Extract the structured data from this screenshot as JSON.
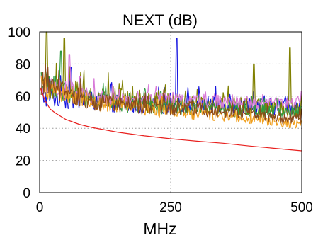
{
  "chart_data": {
    "type": "line",
    "title": "NEXT (dB)",
    "xlabel": "MHz",
    "ylabel": "",
    "xlim": [
      0,
      500
    ],
    "ylim": [
      0,
      100
    ],
    "xticks": [
      0,
      250,
      500
    ],
    "yticks": [
      0,
      20,
      40,
      60,
      80,
      100
    ],
    "grid": true,
    "legend": "none",
    "limit_line": {
      "color": "#e8201e",
      "x": [
        1,
        5,
        10,
        20,
        30,
        50,
        75,
        100,
        150,
        200,
        250,
        300,
        350,
        400,
        450,
        500
      ],
      "values": [
        65.3,
        62,
        57.5,
        52,
        49.5,
        45.5,
        42.5,
        40.5,
        37.5,
        35.3,
        33.5,
        32,
        30.7,
        29,
        27.5,
        26
      ]
    },
    "measured_series": [
      {
        "color": "#1515e0",
        "base": [
          60,
          57,
          54,
          55,
          54,
          53
        ],
        "amp": [
          9,
          8,
          7,
          7,
          7,
          6
        ],
        "spikes": [
          [
            262,
            96
          ],
          [
            60,
            78
          ]
        ]
      },
      {
        "color": "#808000",
        "base": [
          68,
          60,
          56,
          55,
          53,
          51
        ],
        "amp": [
          11,
          10,
          9,
          8,
          8,
          7
        ],
        "spikes": [
          [
            13,
            100
          ],
          [
            47,
            96
          ],
          [
            477,
            90
          ],
          [
            408,
            80
          ]
        ]
      },
      {
        "color": "#2e9a40",
        "base": [
          70,
          57,
          54,
          53,
          51,
          50
        ],
        "amp": [
          10,
          8,
          7,
          6,
          6,
          5
        ],
        "spikes": [
          [
            40,
            88
          ]
        ]
      },
      {
        "color": "#d87ad8",
        "base": [
          68,
          60,
          59,
          57,
          56,
          56
        ],
        "amp": [
          8,
          7,
          6,
          6,
          5,
          5
        ],
        "spikes": [
          [
            56,
            86
          ]
        ]
      },
      {
        "color": "#f0a020",
        "base": [
          66,
          56,
          52,
          49,
          46,
          42
        ],
        "amp": [
          9,
          7,
          6,
          5,
          4,
          4
        ],
        "spikes": []
      },
      {
        "color": "#8b4a1c",
        "base": [
          67,
          57,
          54,
          52,
          49,
          45
        ],
        "amp": [
          9,
          8,
          7,
          6,
          5,
          5
        ],
        "spikes": []
      }
    ]
  }
}
